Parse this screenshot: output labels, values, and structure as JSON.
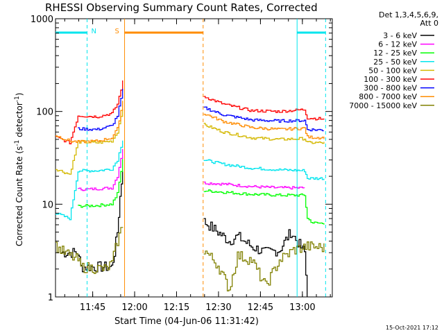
{
  "chart_data": {
    "type": "line",
    "title": "RHESSI Observing Summary Count Rates, Corrected",
    "xlabel": "Start Time (04-Jun-06 11:31:42)",
    "ylabel_main": "Corrected Count Rate (s",
    "ylabel_sup1": "-1",
    "ylabel_mid": " detector",
    "ylabel_sup2": "-1",
    "ylabel_end": ")",
    "yscale": "log",
    "ylim": [
      1,
      1000
    ],
    "y_ticks": [
      {
        "value": 1,
        "label": "1"
      },
      {
        "value": 10,
        "label": "10"
      },
      {
        "value": 100,
        "label": "100"
      },
      {
        "value": 1000,
        "label": "1000"
      }
    ],
    "x_unit": "minutes after 11:31:42",
    "xlim": [
      0,
      99
    ],
    "x_ticks": [
      {
        "value": 13.3,
        "label": "11:45"
      },
      {
        "value": 28.3,
        "label": "12:00"
      },
      {
        "value": 43.3,
        "label": "12:15"
      },
      {
        "value": 58.3,
        "label": "12:30"
      },
      {
        "value": 73.3,
        "label": "12:45"
      },
      {
        "value": 88.3,
        "label": "13:00"
      }
    ],
    "legend_header": [
      "Det 1,3,4,5,6,9,",
      "Att 0"
    ],
    "timestamp": "15-Oct-2021 17:12",
    "markers": [
      {
        "kind": "N",
        "label": "N",
        "color": "#00e5ee",
        "start": 0,
        "end": 11.3,
        "dash_start": 11.3
      },
      {
        "kind": "S",
        "label": "S",
        "color": "#ff8c00",
        "start": 24.7,
        "end": 52.8,
        "dash_end": 52.8
      },
      {
        "kind": "N2",
        "label": "",
        "color": "#00e5ee",
        "start": 86.4,
        "end": 96.6,
        "dash_end": 96.6
      }
    ],
    "series": [
      {
        "name": "3 - 6 keV",
        "color": "#000000",
        "pre": [
          {
            "x": 2,
            "y": 3.0
          },
          {
            "x": 8,
            "y": 3.0
          },
          {
            "x": 9,
            "y": 2.1
          },
          {
            "x": 20,
            "y": 2.1
          },
          {
            "x": 21,
            "y": 3.0
          },
          {
            "x": 22,
            "y": 5
          },
          {
            "x": 23,
            "y": 12
          },
          {
            "x": 24,
            "y": 25
          }
        ],
        "post": [
          {
            "x": 53,
            "y": 6.5
          },
          {
            "x": 58,
            "y": 5.0
          },
          {
            "x": 62,
            "y": 4.0
          },
          {
            "x": 65,
            "y": 4.5
          },
          {
            "x": 70,
            "y": 3.5
          },
          {
            "x": 75,
            "y": 3.0
          },
          {
            "x": 80,
            "y": 3.2
          },
          {
            "x": 84,
            "y": 5.0
          },
          {
            "x": 89,
            "y": 3.0
          },
          {
            "x": 90,
            "y": 1.0
          }
        ]
      },
      {
        "name": "6 - 12 keV",
        "color": "#ff00ff",
        "pre": [
          {
            "x": 8,
            "y": 14.5
          },
          {
            "x": 12,
            "y": 14.5
          },
          {
            "x": 20,
            "y": 15
          },
          {
            "x": 22,
            "y": 20
          },
          {
            "x": 24,
            "y": 40
          }
        ],
        "post": [
          {
            "x": 53,
            "y": 17
          },
          {
            "x": 60,
            "y": 16.5
          },
          {
            "x": 70,
            "y": 15.5
          },
          {
            "x": 80,
            "y": 15
          },
          {
            "x": 89,
            "y": 15
          }
        ]
      },
      {
        "name": "12 - 25 keV",
        "color": "#00ff00",
        "pre": [
          {
            "x": 8,
            "y": 9.5
          },
          {
            "x": 15,
            "y": 9.7
          },
          {
            "x": 20,
            "y": 10
          },
          {
            "x": 22,
            "y": 13
          },
          {
            "x": 24,
            "y": 30
          }
        ],
        "post": [
          {
            "x": 53,
            "y": 14
          },
          {
            "x": 60,
            "y": 13.5
          },
          {
            "x": 70,
            "y": 12.8
          },
          {
            "x": 80,
            "y": 12.5
          },
          {
            "x": 89,
            "y": 12.5
          },
          {
            "x": 90,
            "y": 7
          },
          {
            "x": 92,
            "y": 6.3
          },
          {
            "x": 96,
            "y": 6.2
          }
        ]
      },
      {
        "name": "25 - 50 keV",
        "color": "#00e5ee",
        "pre": [
          {
            "x": 0,
            "y": 8
          },
          {
            "x": 5,
            "y": 7
          },
          {
            "x": 8,
            "y": 23
          },
          {
            "x": 15,
            "y": 23
          },
          {
            "x": 20,
            "y": 24
          },
          {
            "x": 22,
            "y": 30
          },
          {
            "x": 24,
            "y": 50
          }
        ],
        "post": [
          {
            "x": 53,
            "y": 30
          },
          {
            "x": 60,
            "y": 27
          },
          {
            "x": 70,
            "y": 24.5
          },
          {
            "x": 80,
            "y": 23.5
          },
          {
            "x": 89,
            "y": 23
          },
          {
            "x": 90,
            "y": 19
          },
          {
            "x": 96,
            "y": 19
          }
        ]
      },
      {
        "name": "50 - 100 keV",
        "color": "#d4b800",
        "pre": [
          {
            "x": 0,
            "y": 24
          },
          {
            "x": 5,
            "y": 21
          },
          {
            "x": 8,
            "y": 47
          },
          {
            "x": 15,
            "y": 46
          },
          {
            "x": 20,
            "y": 48
          },
          {
            "x": 22,
            "y": 60
          },
          {
            "x": 24,
            "y": 110
          }
        ],
        "post": [
          {
            "x": 53,
            "y": 72
          },
          {
            "x": 60,
            "y": 60
          },
          {
            "x": 70,
            "y": 52
          },
          {
            "x": 80,
            "y": 50
          },
          {
            "x": 89,
            "y": 51
          },
          {
            "x": 90,
            "y": 46
          },
          {
            "x": 96,
            "y": 46
          }
        ]
      },
      {
        "name": "100 - 300 keV",
        "color": "#ff0000",
        "pre": [
          {
            "x": 0,
            "y": 53
          },
          {
            "x": 5,
            "y": 46
          },
          {
            "x": 8,
            "y": 90
          },
          {
            "x": 15,
            "y": 88
          },
          {
            "x": 20,
            "y": 95
          },
          {
            "x": 22,
            "y": 120
          },
          {
            "x": 24,
            "y": 210
          }
        ],
        "post": [
          {
            "x": 53,
            "y": 145
          },
          {
            "x": 60,
            "y": 120
          },
          {
            "x": 70,
            "y": 102
          },
          {
            "x": 80,
            "y": 100
          },
          {
            "x": 89,
            "y": 105
          },
          {
            "x": 90,
            "y": 85
          },
          {
            "x": 96,
            "y": 83
          }
        ]
      },
      {
        "name": "300 - 800 keV",
        "color": "#0000ff",
        "pre": [
          {
            "x": 8,
            "y": 65
          },
          {
            "x": 15,
            "y": 64
          },
          {
            "x": 20,
            "y": 70
          },
          {
            "x": 22,
            "y": 90
          },
          {
            "x": 24,
            "y": 170
          }
        ],
        "post": [
          {
            "x": 53,
            "y": 110
          },
          {
            "x": 60,
            "y": 92
          },
          {
            "x": 70,
            "y": 81
          },
          {
            "x": 80,
            "y": 79
          },
          {
            "x": 89,
            "y": 80
          },
          {
            "x": 90,
            "y": 64
          },
          {
            "x": 96,
            "y": 63
          }
        ]
      },
      {
        "name": "800 - 7000 keV",
        "color": "#ff8c00",
        "pre": [
          {
            "x": 0,
            "y": 55
          },
          {
            "x": 5,
            "y": 48
          },
          {
            "x": 8,
            "y": 47
          },
          {
            "x": 15,
            "y": 48
          },
          {
            "x": 20,
            "y": 52
          },
          {
            "x": 22,
            "y": 65
          },
          {
            "x": 24,
            "y": 130
          }
        ],
        "post": [
          {
            "x": 53,
            "y": 95
          },
          {
            "x": 60,
            "y": 78
          },
          {
            "x": 70,
            "y": 67
          },
          {
            "x": 80,
            "y": 64
          },
          {
            "x": 89,
            "y": 66
          },
          {
            "x": 90,
            "y": 53
          },
          {
            "x": 96,
            "y": 52
          }
        ]
      },
      {
        "name": "7000 - 15000 keV",
        "color": "#808000",
        "pre": [
          {
            "x": 0,
            "y": 3.5
          },
          {
            "x": 3,
            "y": 3.0
          },
          {
            "x": 8,
            "y": 2.5
          },
          {
            "x": 9,
            "y": 2.1
          },
          {
            "x": 18,
            "y": 2.0
          },
          {
            "x": 20,
            "y": 2.3
          },
          {
            "x": 22,
            "y": 4
          },
          {
            "x": 24,
            "y": 6
          }
        ],
        "post": [
          {
            "x": 53,
            "y": 3.2
          },
          {
            "x": 58,
            "y": 2.2
          },
          {
            "x": 62,
            "y": 1.2
          },
          {
            "x": 65,
            "y": 2.8
          },
          {
            "x": 70,
            "y": 2.5
          },
          {
            "x": 75,
            "y": 1.3
          },
          {
            "x": 80,
            "y": 2.5
          },
          {
            "x": 85,
            "y": 3.2
          },
          {
            "x": 90,
            "y": 3.5
          },
          {
            "x": 96,
            "y": 3.4
          }
        ]
      }
    ]
  }
}
